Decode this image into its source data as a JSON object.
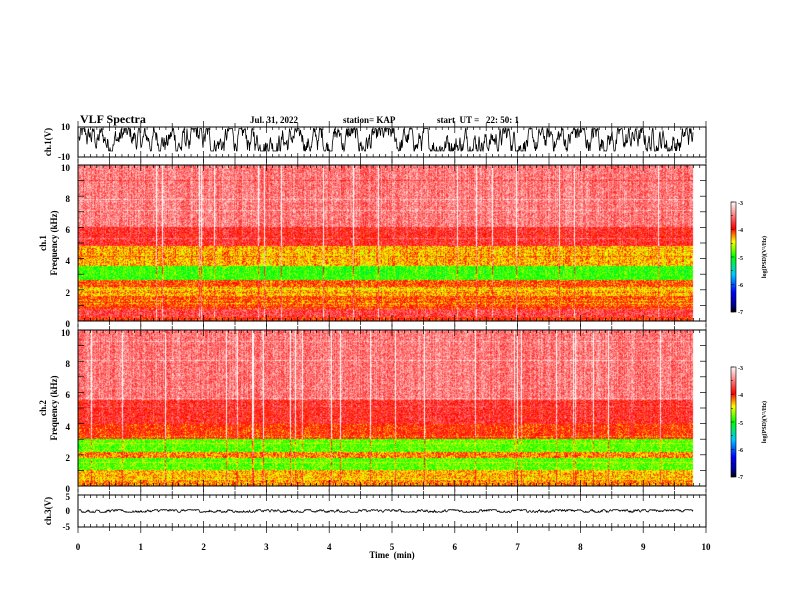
{
  "header": {
    "title": "VLF Spectra",
    "date": "Jul. 31, 2022",
    "station": "station= KAP",
    "start": "start  UT =   22: 50: 1"
  },
  "chart_data": [
    {
      "type": "line",
      "panel": "ch1-waveform",
      "ylabel": "ch.1(V)",
      "yticks": [
        "10",
        "-10"
      ],
      "ylim": [
        -10,
        10
      ],
      "xlim": [
        0,
        10
      ],
      "trace_end_min": 9.8,
      "trace_band": [
        -6,
        9
      ]
    },
    {
      "type": "heatmap",
      "panel": "ch1-spectrogram",
      "ylabel_line1": "ch.1",
      "ylabel_line2": "Frequency (kHz)",
      "yticks": [
        "10",
        "8",
        "6",
        "4",
        "2",
        "0"
      ],
      "ylim": [
        0,
        10
      ],
      "xlim": [
        0,
        10
      ],
      "data_end_min": 9.8,
      "colorbar": {
        "label": "log(PSD)(V²/Hz)",
        "ticks": [
          "-3",
          "-4",
          "-5",
          "-6",
          "-7"
        ],
        "range": [
          -7,
          -3
        ]
      },
      "bands": [
        {
          "from": 0.0,
          "to": 0.25,
          "level": -4.0
        },
        {
          "from": 0.25,
          "to": 0.8,
          "level": -3.7
        },
        {
          "from": 0.8,
          "to": 1.6,
          "level": -4.1
        },
        {
          "from": 1.6,
          "to": 2.2,
          "level": -4.3
        },
        {
          "from": 2.2,
          "to": 2.6,
          "level": -4.1
        },
        {
          "from": 2.6,
          "to": 3.5,
          "level": -4.9
        },
        {
          "from": 3.5,
          "to": 3.8,
          "level": -4.3
        },
        {
          "from": 3.8,
          "to": 4.8,
          "level": -4.3
        },
        {
          "from": 4.8,
          "to": 6.0,
          "level": -3.8
        },
        {
          "from": 6.0,
          "to": 10.0,
          "level": -3.5
        }
      ]
    },
    {
      "type": "heatmap",
      "panel": "ch2-spectrogram",
      "ylabel_line1": "ch.2",
      "ylabel_line2": "Frequency (kHz)",
      "yticks": [
        "10",
        "8",
        "6",
        "4",
        "2",
        "0"
      ],
      "ylim": [
        0,
        10
      ],
      "xlim": [
        0,
        10
      ],
      "data_end_min": 9.8,
      "colorbar": {
        "label": "log(PSD)(V²/Hz)",
        "ticks": [
          "-3",
          "-4",
          "-5",
          "-6",
          "-7"
        ],
        "range": [
          -7,
          -3
        ]
      },
      "bands": [
        {
          "from": 0.0,
          "to": 0.4,
          "level": -4.2
        },
        {
          "from": 0.4,
          "to": 1.0,
          "level": -4.3
        },
        {
          "from": 1.0,
          "to": 1.8,
          "level": -4.8
        },
        {
          "from": 1.8,
          "to": 2.2,
          "level": -4.2
        },
        {
          "from": 2.2,
          "to": 3.0,
          "level": -4.8
        },
        {
          "from": 3.0,
          "to": 4.0,
          "level": -4.0
        },
        {
          "from": 4.0,
          "to": 5.5,
          "level": -3.8
        },
        {
          "from": 5.5,
          "to": 10.0,
          "level": -3.5
        }
      ]
    },
    {
      "type": "line",
      "panel": "ch3-waveform",
      "ylabel": "ch.3(V)",
      "yticks": [
        "5",
        "0",
        "-5"
      ],
      "ylim": [
        -5,
        5
      ],
      "xlim": [
        0,
        10
      ],
      "trace_end_min": 9.8,
      "trace_band": [
        -0.4,
        0.4
      ],
      "xlabel": "Time  (min)",
      "xticks": [
        "0",
        "1",
        "2",
        "3",
        "4",
        "5",
        "6",
        "7",
        "8",
        "9",
        "10"
      ]
    }
  ]
}
